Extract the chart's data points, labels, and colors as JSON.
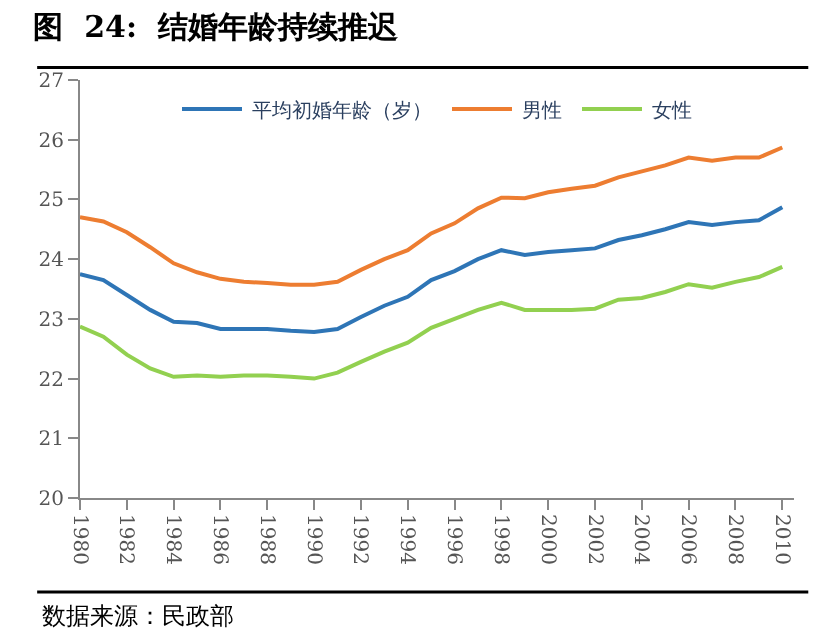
{
  "chart_data": {
    "type": "line",
    "title": "图  24:  结婚年龄持续推迟",
    "x": [
      1980,
      1981,
      1982,
      1983,
      1984,
      1985,
      1986,
      1987,
      1988,
      1989,
      1990,
      1991,
      1992,
      1993,
      1994,
      1995,
      1996,
      1997,
      1998,
      1999,
      2000,
      2001,
      2002,
      2003,
      2004,
      2005,
      2006,
      2007,
      2008,
      2009,
      2010
    ],
    "series": [
      {
        "name": "平均初婚年龄（岁）",
        "color": "#2e75b6",
        "values": [
          23.75,
          23.65,
          23.4,
          23.15,
          22.95,
          22.93,
          22.83,
          22.83,
          22.83,
          22.8,
          22.78,
          22.83,
          23.03,
          23.22,
          23.37,
          23.65,
          23.8,
          24.0,
          24.15,
          24.07,
          24.12,
          24.15,
          24.18,
          24.32,
          24.4,
          24.5,
          24.62,
          24.57,
          24.62,
          24.65,
          24.87
        ]
      },
      {
        "name": "男性",
        "color": "#ed7d31",
        "values": [
          24.7,
          24.63,
          24.45,
          24.2,
          23.93,
          23.78,
          23.67,
          23.62,
          23.6,
          23.57,
          23.57,
          23.62,
          23.82,
          24.0,
          24.15,
          24.43,
          24.6,
          24.85,
          25.03,
          25.02,
          25.12,
          25.18,
          25.23,
          25.37,
          25.47,
          25.57,
          25.7,
          25.65,
          25.7,
          25.7,
          25.87
        ]
      },
      {
        "name": "女性",
        "color": "#92d050",
        "values": [
          22.87,
          22.7,
          22.4,
          22.17,
          22.03,
          22.05,
          22.03,
          22.05,
          22.05,
          22.03,
          22.0,
          22.1,
          22.28,
          22.45,
          22.6,
          22.85,
          23.0,
          23.15,
          23.27,
          23.15,
          23.15,
          23.15,
          23.17,
          23.32,
          23.35,
          23.45,
          23.58,
          23.52,
          23.62,
          23.7,
          23.87
        ]
      }
    ],
    "xlim": [
      1980,
      2010.5
    ],
    "xticks": [
      1980,
      1982,
      1984,
      1986,
      1988,
      1990,
      1992,
      1994,
      1996,
      1998,
      2000,
      2002,
      2004,
      2006,
      2008,
      2010
    ],
    "ylim": [
      20,
      27
    ],
    "yticks": [
      20,
      21,
      22,
      23,
      24,
      25,
      26,
      27
    ],
    "grid": false,
    "legend": "top",
    "marker": "none",
    "line_style": "solid",
    "annotations": [
      "数据来源：民政部"
    ]
  }
}
